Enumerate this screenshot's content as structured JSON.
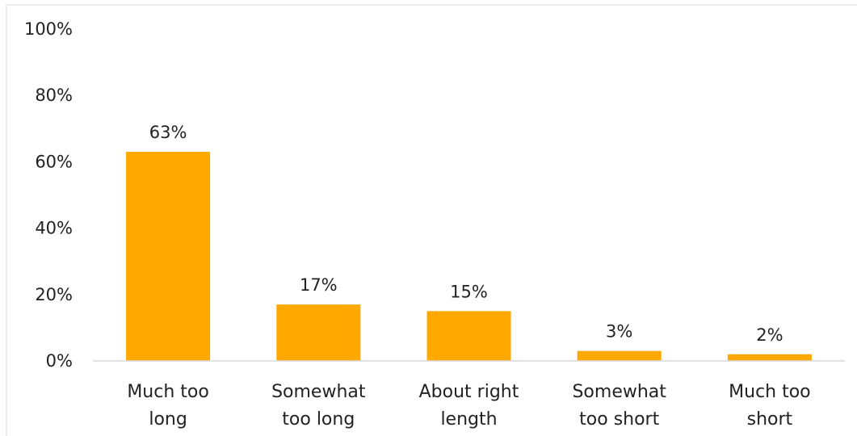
{
  "chart_data": {
    "type": "bar",
    "categories": [
      [
        "Much too",
        "long"
      ],
      [
        "Somewhat",
        "too long"
      ],
      [
        "About right",
        "length"
      ],
      [
        "Somewhat",
        "too short"
      ],
      [
        "Much too",
        "short"
      ]
    ],
    "values": [
      63,
      17,
      15,
      3,
      2
    ],
    "data_labels": [
      "63%",
      "17%",
      "15%",
      "3%",
      "2%"
    ],
    "ylim": [
      0,
      100
    ],
    "yticks": [
      0,
      20,
      40,
      60,
      80,
      100
    ],
    "ytick_labels": [
      "0%",
      "20%",
      "40%",
      "60%",
      "80%",
      "100%"
    ],
    "grid": false,
    "bar_color": "#FFA800",
    "axis_color": "#D9D9D9",
    "frame_color": "#D9D9D9"
  }
}
